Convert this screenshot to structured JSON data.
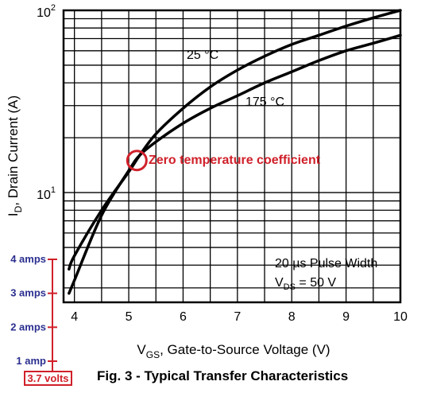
{
  "chart_data": {
    "type": "line",
    "figure_caption": "Fig. 3 - Typical Transfer Characteristics",
    "xlabel_main": "V",
    "xlabel_sub": "GS",
    "xlabel_rest": ", Gate-to-Source Voltage (V)",
    "ylabel_main": "I",
    "ylabel_sub": "D",
    "ylabel_rest": ", Drain Current (A)",
    "xlim": [
      3.8,
      10
    ],
    "ylim": [
      2.5,
      100
    ],
    "y_scale": "log",
    "grid": true,
    "x_ticks": [
      "4",
      "5",
      "6",
      "7",
      "8",
      "9",
      "10"
    ],
    "y_tick_labels": [
      {
        "value": 10,
        "base": "10",
        "exp": "1"
      },
      {
        "value": 100,
        "base": "10",
        "exp": "2"
      }
    ],
    "series": [
      {
        "name": "25 °C",
        "x": [
          3.9,
          4.0,
          4.5,
          5.0,
          5.2,
          5.5,
          6.0,
          6.5,
          7.0,
          7.5,
          8.0,
          8.5,
          9.0,
          9.5,
          10.0
        ],
        "y": [
          3.8,
          4.5,
          8.0,
          13.0,
          16.0,
          21.0,
          29.0,
          38.0,
          47.0,
          56.0,
          65.0,
          73.0,
          82.0,
          91.0,
          100.0
        ]
      },
      {
        "name": "175 °C",
        "x": [
          3.9,
          4.0,
          4.5,
          5.0,
          5.2,
          5.5,
          6.0,
          6.5,
          7.0,
          7.5,
          8.0,
          8.5,
          9.0,
          9.5,
          10.0
        ],
        "y": [
          2.8,
          3.3,
          7.5,
          13.2,
          16.0,
          19.0,
          24.0,
          29.0,
          34.0,
          40.0,
          46.0,
          53.0,
          60.0,
          66.0,
          73.0
        ]
      }
    ],
    "curve_labels": [
      "25 °C",
      "175 °C"
    ],
    "note_line1": "20 µs Pulse Width",
    "note_line2_main": "V",
    "note_line2_sub": "DS",
    "note_line2_rest": " = 50 V",
    "annotations": {
      "zero_tc_label": "Zero temperature coefficient",
      "zero_tc_point": {
        "x": 5.15,
        "y": 15.0
      },
      "threshold_label": "3.7 volts",
      "threshold_voltage": 3.7,
      "amp_marks": [
        {
          "label": "4 amps",
          "value": 4
        },
        {
          "label": "3 amps",
          "value": 3
        },
        {
          "label": "2 amps",
          "value": 2
        },
        {
          "label": "1 amp",
          "value": 1
        }
      ]
    },
    "colors": {
      "annotation_red": "#d0202a",
      "annotation_blue": "#2b2f8f",
      "curve": "#000000",
      "grid": "#000000"
    }
  }
}
